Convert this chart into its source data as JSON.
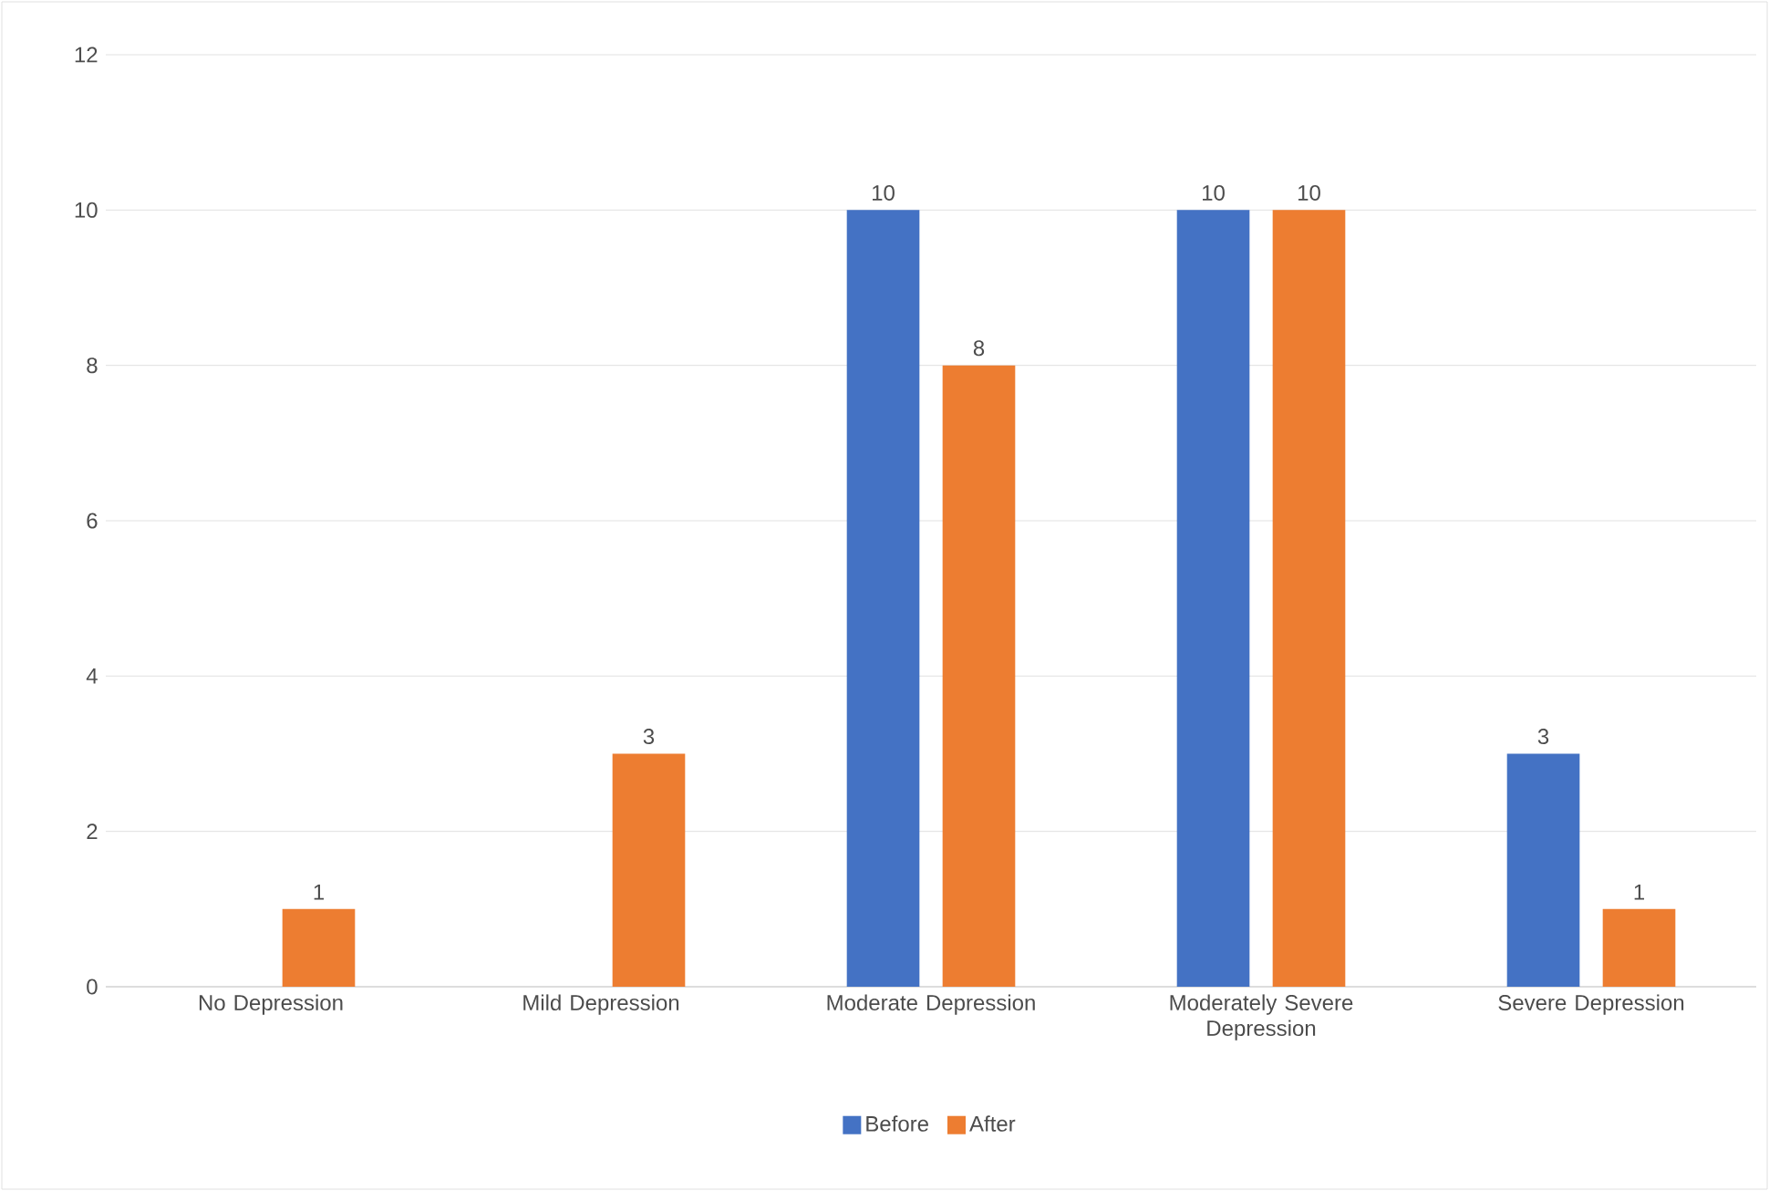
{
  "chart_data": {
    "type": "bar",
    "categories": [
      "No Depression",
      "Mild Depression",
      "Moderate Depression",
      "Moderately Severe Depression",
      "Severe Depression"
    ],
    "series": [
      {
        "name": "Before",
        "color": "#4472c4",
        "values": [
          null,
          null,
          10,
          10,
          3
        ]
      },
      {
        "name": "After",
        "color": "#ed7d31",
        "values": [
          1,
          3,
          8,
          10,
          1
        ]
      }
    ],
    "ylim": [
      0,
      12
    ],
    "yticks": [
      0,
      2,
      4,
      6,
      8,
      10,
      12
    ],
    "grid": "y",
    "legend": "bottom",
    "data_labels": true
  }
}
